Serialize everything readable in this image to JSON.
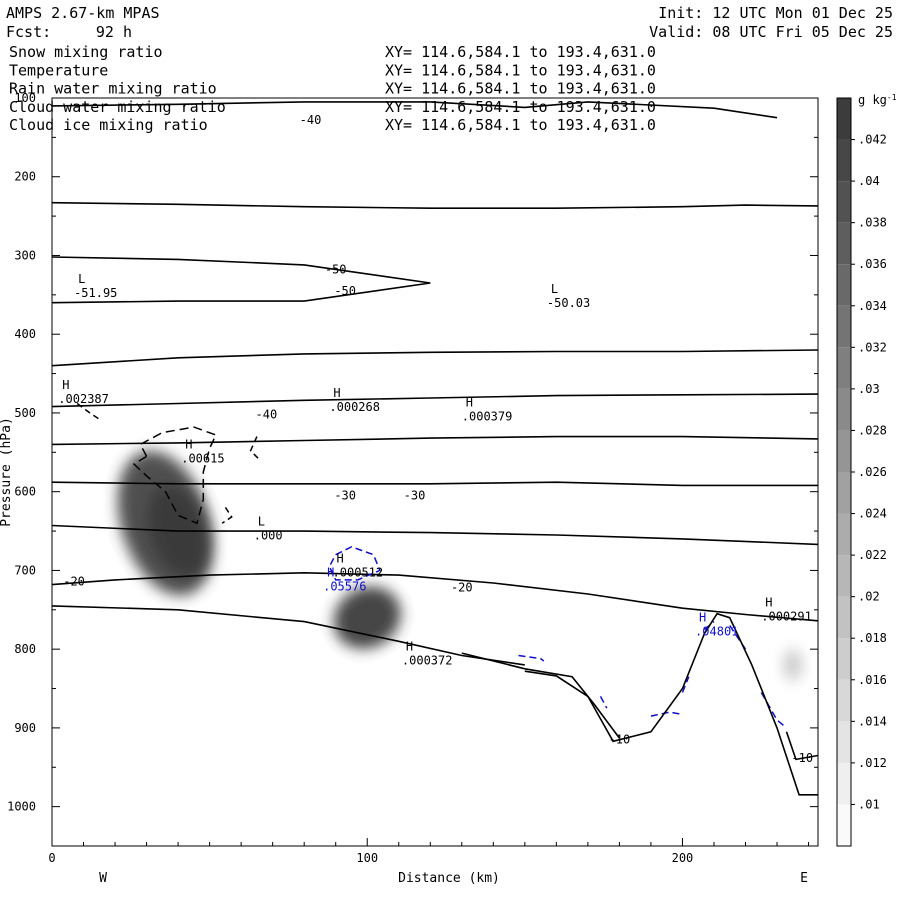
{
  "header": {
    "model": "AMPS 2.67-km MPAS",
    "init": "Init: 12 UTC Mon 01 Dec 25",
    "fcst_label": "Fcst:",
    "fcst_value": "92 h",
    "valid": "Valid: 08 UTC Fri 05 Dec 25"
  },
  "fields": [
    {
      "name": "Snow mixing ratio",
      "xy": "XY= 114.6,584.1 to 193.4,631.0",
      "color": "#000000"
    },
    {
      "name": "Temperature",
      "xy": "XY= 114.6,584.1 to 193.4,631.0",
      "color": "#000000"
    },
    {
      "name": "Rain water mixing ratio",
      "xy": "XY= 114.6,584.1 to 193.4,631.0",
      "color": "#e00000"
    },
    {
      "name": "Cloud water mixing ratio",
      "xy": "XY= 114.6,584.1 to 193.4,631.0",
      "color": "#1010c8"
    },
    {
      "name": "Cloud ice mixing ratio",
      "xy": "XY= 114.6,584.1 to 193.4,631.0",
      "color": "#000000"
    }
  ],
  "chart_data": {
    "type": "cross-section contour",
    "xlabel": "Distance (km)",
    "ylabel": "Pressure (hPa)",
    "xlim": [
      0,
      243
    ],
    "ylim": [
      1050,
      100
    ],
    "x_ticks": [
      0,
      100,
      200
    ],
    "y_ticks": [
      100,
      200,
      300,
      400,
      500,
      600,
      700,
      800,
      900,
      1000
    ],
    "left_end": "W",
    "right_end": "E",
    "colorbar": {
      "unit": "g kg",
      "unit_exp": "-1",
      "ticks": [
        ".01",
        ".012",
        ".014",
        ".016",
        ".018",
        ".02",
        ".022",
        ".024",
        ".026",
        ".028",
        ".03",
        ".032",
        ".034",
        ".036",
        ".038",
        ".04",
        ".042"
      ]
    },
    "terrain": [
      [
        150,
        828
      ],
      [
        160,
        834
      ],
      [
        170,
        860
      ],
      [
        178,
        917
      ],
      [
        190,
        905
      ],
      [
        200,
        850
      ],
      [
        207,
        780
      ],
      [
        211,
        755
      ],
      [
        215,
        760
      ],
      [
        222,
        820
      ],
      [
        230,
        900
      ],
      [
        237,
        985
      ],
      [
        243,
        985
      ]
    ],
    "isotherms": [
      {
        "label": "-10",
        "label_at": [
          180,
          915
        ],
        "points": [
          [
            130,
            805
          ],
          [
            150,
            825
          ],
          [
            165,
            835
          ],
          [
            172,
            870
          ],
          [
            180,
            913
          ]
        ]
      },
      {
        "label": "-10",
        "label_at": [
          238,
          938
        ],
        "points": [
          [
            233,
            905
          ],
          [
            236,
            940
          ],
          [
            243,
            935
          ]
        ]
      },
      {
        "label": "-20",
        "label_at": [
          7,
          714
        ],
        "points": [
          [
            0,
            718
          ],
          [
            20,
            712
          ],
          [
            50,
            706
          ],
          [
            80,
            703
          ],
          [
            110,
            706
          ],
          [
            140,
            716
          ],
          [
            170,
            730
          ],
          [
            200,
            748
          ],
          [
            220,
            756
          ],
          [
            243,
            764
          ]
        ]
      },
      {
        "label": "-20",
        "label_at": [
          130,
          722
        ],
        "points": []
      },
      {
        "label": "",
        "label_at": null,
        "points": [
          [
            0,
            745
          ],
          [
            40,
            750
          ],
          [
            80,
            765
          ],
          [
            110,
            790
          ],
          [
            130,
            808
          ],
          [
            150,
            820
          ]
        ]
      },
      {
        "label": "",
        "label_at": null,
        "points": [
          [
            0,
            643
          ],
          [
            40,
            650
          ],
          [
            80,
            650
          ],
          [
            120,
            652
          ],
          [
            160,
            655
          ],
          [
            200,
            660
          ],
          [
            243,
            667
          ]
        ]
      },
      {
        "label": "-30",
        "label_at": [
          93,
          605
        ],
        "points": [
          [
            0,
            588
          ],
          [
            40,
            590
          ],
          [
            80,
            590
          ],
          [
            120,
            590
          ],
          [
            160,
            588
          ],
          [
            200,
            592
          ],
          [
            243,
            592
          ]
        ]
      },
      {
        "label": "-30",
        "label_at": [
          115,
          605
        ],
        "points": []
      },
      {
        "label": "",
        "label_at": null,
        "points": [
          [
            0,
            540
          ],
          [
            40,
            538
          ],
          [
            80,
            535
          ],
          [
            120,
            532
          ],
          [
            160,
            530
          ],
          [
            200,
            530
          ],
          [
            243,
            533
          ]
        ]
      },
      {
        "label": "-40",
        "label_at": [
          68,
          502
        ],
        "points": [
          [
            0,
            492
          ],
          [
            40,
            488
          ],
          [
            80,
            484
          ],
          [
            120,
            481
          ],
          [
            160,
            478
          ],
          [
            200,
            477
          ],
          [
            243,
            476
          ]
        ]
      },
      {
        "label": "",
        "label_at": null,
        "points": [
          [
            0,
            440
          ],
          [
            40,
            430
          ],
          [
            80,
            425
          ],
          [
            120,
            423
          ],
          [
            160,
            422
          ],
          [
            200,
            422
          ],
          [
            243,
            420
          ]
        ]
      },
      {
        "label": "-50",
        "label_at": [
          90,
          318
        ],
        "points": [
          [
            0,
            360
          ],
          [
            40,
            358
          ],
          [
            80,
            358
          ],
          [
            120,
            335
          ],
          [
            80,
            312
          ],
          [
            40,
            305
          ],
          [
            0,
            302
          ]
        ]
      },
      {
        "label": "",
        "label_at": null,
        "points": [
          [
            0,
            233
          ],
          [
            40,
            235
          ],
          [
            80,
            238
          ],
          [
            120,
            240
          ],
          [
            160,
            240
          ],
          [
            200,
            238
          ],
          [
            220,
            236
          ],
          [
            243,
            237
          ]
        ]
      },
      {
        "label": "-40",
        "label_at": [
          82,
          128
        ],
        "points": [
          [
            0,
            110
          ],
          [
            40,
            108
          ],
          [
            80,
            105
          ],
          [
            120,
            105
          ],
          [
            150,
            112
          ],
          [
            170,
            105
          ],
          [
            210,
            113
          ],
          [
            230,
            125
          ]
        ]
      }
    ],
    "snow_max": 0.032,
    "annotations": [
      {
        "type": "L",
        "value": "-51.95",
        "x": 7,
        "p": 345,
        "color": "#000000"
      },
      {
        "type": "L",
        "value": "-50.03",
        "x": 157,
        "p": 358,
        "color": "#000000"
      },
      {
        "type": "H",
        "value": ".002387",
        "x": 2,
        "p": 480,
        "color": "#000000"
      },
      {
        "type": "H",
        "value": ".000268",
        "x": 88,
        "p": 490,
        "color": "#000000"
      },
      {
        "type": "H",
        "value": ".000379",
        "x": 130,
        "p": 502,
        "color": "#000000"
      },
      {
        "type": "H",
        "value": ".00615",
        "x": 41,
        "p": 555,
        "color": "#000000"
      },
      {
        "type": "L",
        "value": ".000",
        "x": 64,
        "p": 653,
        "color": "#000000"
      },
      {
        "type": "H",
        "value": ".000512",
        "x": 89,
        "p": 700,
        "color": "#000000"
      },
      {
        "type": "H",
        "value": ".05576",
        "x": 86,
        "p": 718,
        "color": "#1010c8"
      },
      {
        "type": "H",
        "value": ".000372",
        "x": 111,
        "p": 812,
        "color": "#000000"
      },
      {
        "type": "H",
        "value": ".04801",
        "x": 204,
        "p": 775,
        "color": "#1010c8"
      },
      {
        "type": "H",
        "value": ".000291",
        "x": 225,
        "p": 756,
        "color": "#000000"
      }
    ]
  }
}
